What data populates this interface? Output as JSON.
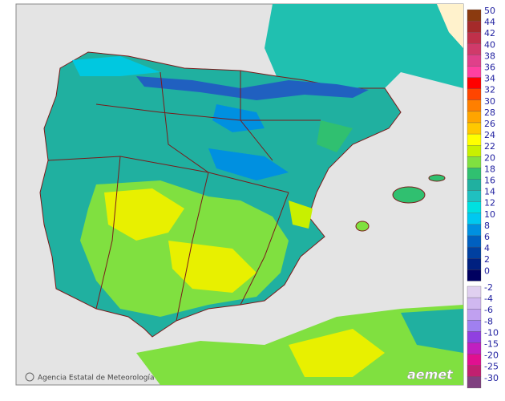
{
  "legend": {
    "labels": [
      {
        "value": 50,
        "color": "#8b3a0f"
      },
      {
        "value": 44,
        "color": "#a52a2a"
      },
      {
        "value": 42,
        "color": "#c0304a"
      },
      {
        "value": 40,
        "color": "#d03a6a"
      },
      {
        "value": 38,
        "color": "#e0408a"
      },
      {
        "value": 36,
        "color": "#ff40a0"
      },
      {
        "value": 34,
        "color": "#ff0000"
      },
      {
        "value": 32,
        "color": "#ff4500"
      },
      {
        "value": 30,
        "color": "#ff7f00"
      },
      {
        "value": 28,
        "color": "#ffa500"
      },
      {
        "value": 26,
        "color": "#ffc800"
      },
      {
        "value": 24,
        "color": "#ffff00"
      },
      {
        "value": 22,
        "color": "#c8f000"
      },
      {
        "value": 20,
        "color": "#80e040"
      },
      {
        "value": 18,
        "color": "#30c070"
      },
      {
        "value": 16,
        "color": "#20b0a0"
      },
      {
        "value": 14,
        "color": "#20c0c0"
      },
      {
        "value": 12,
        "color": "#00e0e0"
      },
      {
        "value": 10,
        "color": "#00c8f0"
      },
      {
        "value": 8,
        "color": "#0090e0"
      },
      {
        "value": 6,
        "color": "#0060c0"
      },
      {
        "value": 4,
        "color": "#0040a0"
      },
      {
        "value": 2,
        "color": "#002080"
      },
      {
        "value": 0,
        "color": "#000060"
      }
    ],
    "negative_labels": [
      {
        "value": -2,
        "color": "#e0d0f0"
      },
      {
        "value": -4,
        "color": "#d0b8f0"
      },
      {
        "value": -6,
        "color": "#c0a0f0"
      },
      {
        "value": -8,
        "color": "#a080f0"
      },
      {
        "value": -10,
        "color": "#9040e0"
      },
      {
        "value": -15,
        "color": "#c020c0"
      },
      {
        "value": -20,
        "color": "#e01090"
      },
      {
        "value": -25,
        "color": "#c02070"
      },
      {
        "value": -30,
        "color": "#804080"
      }
    ]
  },
  "credit": "Agencia Estatal de Meteorología",
  "logo": "aemet"
}
